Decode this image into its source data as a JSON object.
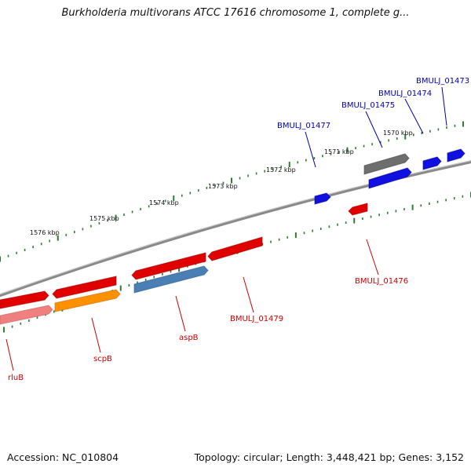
{
  "title": "Burkholderia multivorans ATCC 17616 chromosome 1, complete g...",
  "footer": {
    "accession": "Accession: NC_010804",
    "topology": "Topology: circular; Length: 3,448,421 bp; Genes: 3,152"
  },
  "colors": {
    "backbone": "#8a8a8a",
    "tick": "#2e7d32",
    "forward_gene": "#1010e0",
    "reverse_gene": "#e00000",
    "gray_gene": "#6e6e6e",
    "steel_gene": "#4a7fb5",
    "orange_gene": "#ff9000",
    "pink_gene": "#f08080",
    "forward_label": "#0000aa",
    "reverse_label": "#cc0000"
  },
  "scale_labels": [
    "1576 kbp",
    "1575 kbp",
    "1574 kbp",
    "1573 kbp",
    "1572 kbp",
    "1571 kbp",
    "1570 kbp"
  ],
  "gene_labels": {
    "forward": [
      "BMULJ_01477",
      "BMULJ_01475",
      "BMULJ_01474",
      "BMULJ_01473"
    ],
    "reverse": [
      "rluB",
      "scpB",
      "aspB",
      "BMULJ_01479",
      "BMULJ_01476"
    ]
  }
}
